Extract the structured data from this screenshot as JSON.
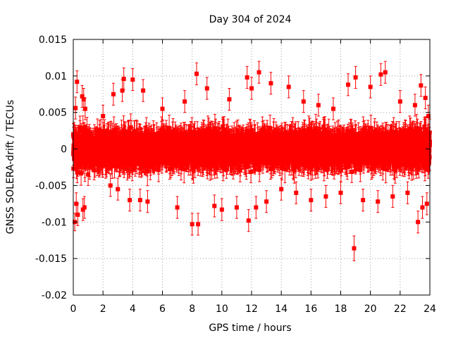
{
  "chart_data": {
    "type": "scatter",
    "title": "Day 304 of 2024",
    "xlabel": "GPS time / hours",
    "ylabel": "GNSS SOLERA-drift / TECUs",
    "xlim": [
      0,
      24
    ],
    "ylim": [
      -0.02,
      0.015
    ],
    "x_ticks": [
      0,
      2,
      4,
      6,
      8,
      10,
      12,
      14,
      16,
      18,
      20,
      22,
      24
    ],
    "x_tick_labels": [
      "0",
      "2",
      "4",
      "6",
      "8",
      "10",
      "12",
      "14",
      "16",
      "18",
      "20",
      "22",
      "24"
    ],
    "y_ticks": [
      -0.02,
      -0.015,
      -0.01,
      -0.005,
      0,
      0.005,
      0.01,
      0.015
    ],
    "y_tick_labels": [
      "-0.02",
      "-0.015",
      "-0.01",
      "-0.005",
      "0",
      "0.005",
      "0.01",
      "0.015"
    ],
    "grid": true,
    "marker": "square",
    "error_bars": true,
    "series_color": "#ff0000",
    "sampling_interval_hours": 0.0083,
    "series": [
      {
        "points": [
          {
            "x": 0.0,
            "y": 0.002,
            "err": 0.0015
          },
          {
            "x": 0.1,
            "y": -0.01,
            "err": 0.0012
          },
          {
            "x": 0.15,
            "y": 0.0056,
            "err": 0.0015
          },
          {
            "x": 0.2,
            "y": -0.0075,
            "err": 0.0015
          },
          {
            "x": 0.25,
            "y": 0.0092,
            "err": 0.0015
          },
          {
            "x": 0.3,
            "y": -0.009,
            "err": 0.0015
          },
          {
            "x": 0.45,
            "y": 0.003,
            "err": 0.0015
          },
          {
            "x": 0.6,
            "y": 0.0072,
            "err": 0.0015
          },
          {
            "x": 0.65,
            "y": -0.0083,
            "err": 0.0015
          },
          {
            "x": 0.7,
            "y": 0.0068,
            "err": 0.0015
          },
          {
            "x": 0.75,
            "y": -0.008,
            "err": 0.0015
          },
          {
            "x": 0.8,
            "y": 0.0055,
            "err": 0.0015
          },
          {
            "x": 1.0,
            "y": -0.0035,
            "err": 0.0015
          },
          {
            "x": 2.0,
            "y": 0.0045,
            "err": 0.0015
          },
          {
            "x": 2.5,
            "y": -0.005,
            "err": 0.0015
          },
          {
            "x": 2.7,
            "y": 0.0075,
            "err": 0.0015
          },
          {
            "x": 3.0,
            "y": -0.0055,
            "err": 0.0015
          },
          {
            "x": 3.3,
            "y": 0.008,
            "err": 0.0015
          },
          {
            "x": 3.4,
            "y": 0.0096,
            "err": 0.0015
          },
          {
            "x": 3.8,
            "y": -0.007,
            "err": 0.0015
          },
          {
            "x": 4.0,
            "y": 0.0095,
            "err": 0.0015
          },
          {
            "x": 4.5,
            "y": -0.007,
            "err": 0.0015
          },
          {
            "x": 4.7,
            "y": 0.008,
            "err": 0.0015
          },
          {
            "x": 5.0,
            "y": -0.0072,
            "err": 0.0015
          },
          {
            "x": 6.0,
            "y": 0.0055,
            "err": 0.0015
          },
          {
            "x": 7.0,
            "y": -0.008,
            "err": 0.0015
          },
          {
            "x": 7.5,
            "y": 0.0065,
            "err": 0.0015
          },
          {
            "x": 8.0,
            "y": -0.0103,
            "err": 0.0015
          },
          {
            "x": 8.3,
            "y": 0.0103,
            "err": 0.0015
          },
          {
            "x": 8.4,
            "y": -0.0103,
            "err": 0.0015
          },
          {
            "x": 9.0,
            "y": 0.0083,
            "err": 0.0015
          },
          {
            "x": 9.5,
            "y": -0.0078,
            "err": 0.0015
          },
          {
            "x": 10.0,
            "y": -0.0083,
            "err": 0.0015
          },
          {
            "x": 10.5,
            "y": 0.0068,
            "err": 0.0015
          },
          {
            "x": 11.0,
            "y": -0.008,
            "err": 0.0015
          },
          {
            "x": 11.7,
            "y": 0.0098,
            "err": 0.0015
          },
          {
            "x": 11.8,
            "y": -0.0098,
            "err": 0.0015
          },
          {
            "x": 12.0,
            "y": 0.0083,
            "err": 0.0015
          },
          {
            "x": 12.3,
            "y": -0.008,
            "err": 0.0015
          },
          {
            "x": 12.5,
            "y": 0.0105,
            "err": 0.0015
          },
          {
            "x": 13.0,
            "y": -0.0072,
            "err": 0.0015
          },
          {
            "x": 13.3,
            "y": 0.009,
            "err": 0.0015
          },
          {
            "x": 14.0,
            "y": -0.0055,
            "err": 0.0015
          },
          {
            "x": 14.5,
            "y": 0.0085,
            "err": 0.0015
          },
          {
            "x": 15.0,
            "y": -0.006,
            "err": 0.0015
          },
          {
            "x": 15.5,
            "y": 0.0065,
            "err": 0.0015
          },
          {
            "x": 16.0,
            "y": -0.007,
            "err": 0.0015
          },
          {
            "x": 16.5,
            "y": 0.006,
            "err": 0.0015
          },
          {
            "x": 17.0,
            "y": -0.0065,
            "err": 0.0015
          },
          {
            "x": 17.5,
            "y": 0.0055,
            "err": 0.0015
          },
          {
            "x": 18.0,
            "y": -0.006,
            "err": 0.0015
          },
          {
            "x": 18.5,
            "y": 0.0088,
            "err": 0.0015
          },
          {
            "x": 18.9,
            "y": -0.0136,
            "err": 0.0017
          },
          {
            "x": 19.0,
            "y": 0.0098,
            "err": 0.0015
          },
          {
            "x": 19.5,
            "y": -0.007,
            "err": 0.0015
          },
          {
            "x": 20.0,
            "y": 0.0085,
            "err": 0.0015
          },
          {
            "x": 20.5,
            "y": -0.0072,
            "err": 0.0015
          },
          {
            "x": 20.7,
            "y": 0.0102,
            "err": 0.0015
          },
          {
            "x": 21.0,
            "y": 0.0105,
            "err": 0.0015
          },
          {
            "x": 21.5,
            "y": -0.0065,
            "err": 0.0015
          },
          {
            "x": 22.0,
            "y": 0.0065,
            "err": 0.0015
          },
          {
            "x": 22.5,
            "y": -0.006,
            "err": 0.0015
          },
          {
            "x": 23.0,
            "y": 0.006,
            "err": 0.0015
          },
          {
            "x": 23.2,
            "y": -0.01,
            "err": 0.0015
          },
          {
            "x": 23.4,
            "y": 0.0087,
            "err": 0.0015
          },
          {
            "x": 23.5,
            "y": -0.008,
            "err": 0.0015
          },
          {
            "x": 23.7,
            "y": 0.007,
            "err": 0.0015
          },
          {
            "x": 23.8,
            "y": -0.0075,
            "err": 0.0015
          },
          {
            "x": 23.9,
            "y": 0.0045,
            "err": 0.0015
          }
        ]
      }
    ]
  }
}
